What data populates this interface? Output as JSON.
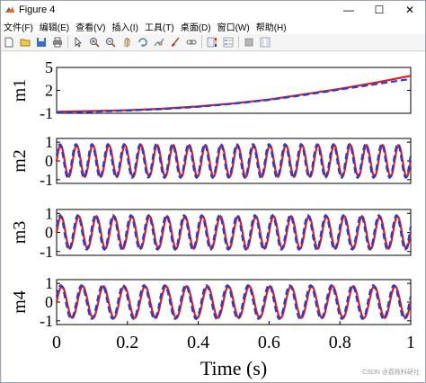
{
  "window": {
    "title": "Figure 4",
    "controls": {
      "minimize": "—",
      "maximize": "☐",
      "close": "✕"
    }
  },
  "menu": [
    "文件(F)",
    "编辑(E)",
    "查看(V)",
    "插入(I)",
    "工具(T)",
    "桌面(D)",
    "窗口(W)",
    "帮助(H)"
  ],
  "toolbar": [
    "new-file-icon",
    "open-folder-icon",
    "save-icon",
    "print-icon",
    "pointer-icon",
    "zoom-in-icon",
    "zoom-out-icon",
    "pan-icon",
    "rotate-3d-icon",
    "data-cursor-icon",
    "brush-icon",
    "link-icon",
    "colorbar-icon",
    "legend-icon",
    "hide-plot-tools-icon",
    "show-plot-tools-icon"
  ],
  "colors": {
    "actual": "#e31a1c",
    "estimate": "#1f3fd6"
  },
  "watermark": "CSDN @荔枝科研社",
  "chart_data": [
    {
      "type": "line",
      "ylabel": "m1",
      "yticks": [
        5,
        2,
        -1
      ],
      "ylim": [
        -1,
        5
      ],
      "xlim": [
        0,
        1
      ],
      "x": [
        0,
        0.1,
        0.2,
        0.3,
        0.4,
        0.5,
        0.6,
        0.7,
        0.8,
        0.9,
        1.0
      ],
      "series": [
        {
          "values": [
            -0.8,
            -0.7,
            -0.6,
            -0.4,
            -0.1,
            0.3,
            0.8,
            1.5,
            2.2,
            3.0,
            3.9
          ]
        },
        {
          "values": [
            -0.9,
            -0.8,
            -0.65,
            -0.45,
            -0.15,
            0.25,
            0.75,
            1.4,
            2.1,
            2.8,
            3.5
          ]
        }
      ]
    },
    {
      "type": "line",
      "ylabel": "m2",
      "yticks": [
        1,
        0,
        -1
      ],
      "ylim": [
        -1.2,
        1.2
      ],
      "xlim": [
        0,
        1
      ],
      "series": [
        {
          "amplitude": 0.85,
          "frequency": 22,
          "phase": 0.0
        },
        {
          "amplitude": 0.9,
          "frequency": 22,
          "phase": 0.35
        }
      ]
    },
    {
      "type": "line",
      "ylabel": "m3",
      "yticks": [
        1,
        0,
        -1
      ],
      "ylim": [
        -1.2,
        1.2
      ],
      "xlim": [
        0,
        1
      ],
      "series": [
        {
          "amplitude": 0.85,
          "frequency": 20,
          "phase": 0.0
        },
        {
          "amplitude": 0.9,
          "frequency": 20,
          "phase": 0.35
        }
      ]
    },
    {
      "type": "line",
      "ylabel": "m4",
      "yticks": [
        1,
        0,
        -1
      ],
      "ylim": [
        -1.2,
        1.2
      ],
      "xlim": [
        0,
        1
      ],
      "xlabel": "Time (s)",
      "xticks": [
        0,
        0.2,
        0.4,
        0.6,
        0.8,
        1
      ],
      "series": [
        {
          "amplitude": 0.85,
          "frequency": 17,
          "phase": 0.0
        },
        {
          "amplitude": 0.9,
          "frequency": 17,
          "phase": 0.35
        }
      ]
    }
  ]
}
